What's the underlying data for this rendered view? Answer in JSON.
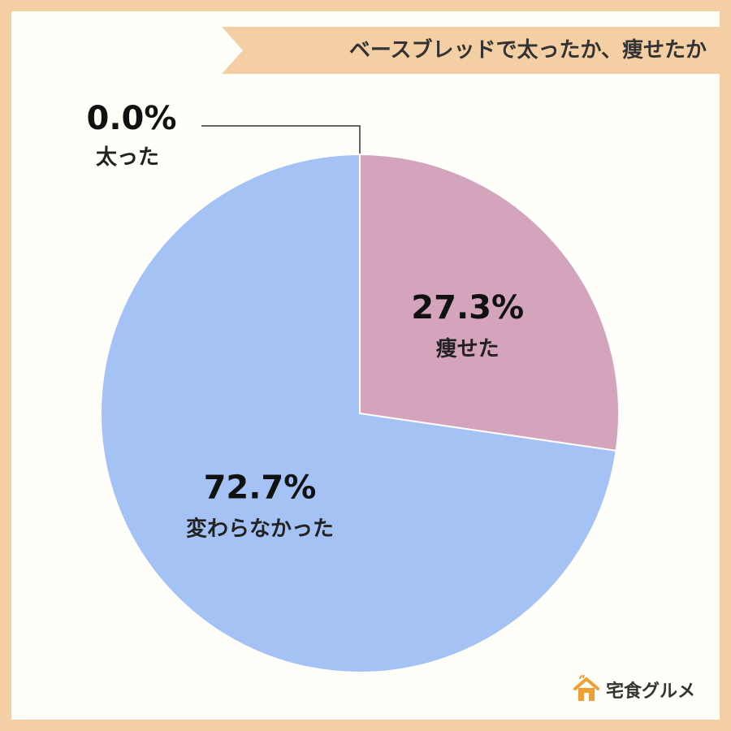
{
  "title": "ベースブレッドで太ったか、痩せたか",
  "chart_data": {
    "type": "pie",
    "title": "ベースブレッドで太ったか、痩せたか",
    "start_angle_deg": 0,
    "direction": "clockwise",
    "slices": [
      {
        "label": "太った",
        "value": 0.0,
        "value_label": "0.0%",
        "color": "#8a8a8a",
        "label_style": "callout"
      },
      {
        "label": "痩せた",
        "value": 27.3,
        "value_label": "27.3%",
        "color": "#d4a4bc",
        "label_style": "inside"
      },
      {
        "label": "変わらなかった",
        "value": 72.7,
        "value_label": "72.7%",
        "color": "#a4c2f4",
        "label_style": "inside"
      }
    ],
    "legend": "none"
  },
  "brand": {
    "name": "宅食グルメ",
    "icon": "house-icon",
    "color": "#f0a030"
  }
}
